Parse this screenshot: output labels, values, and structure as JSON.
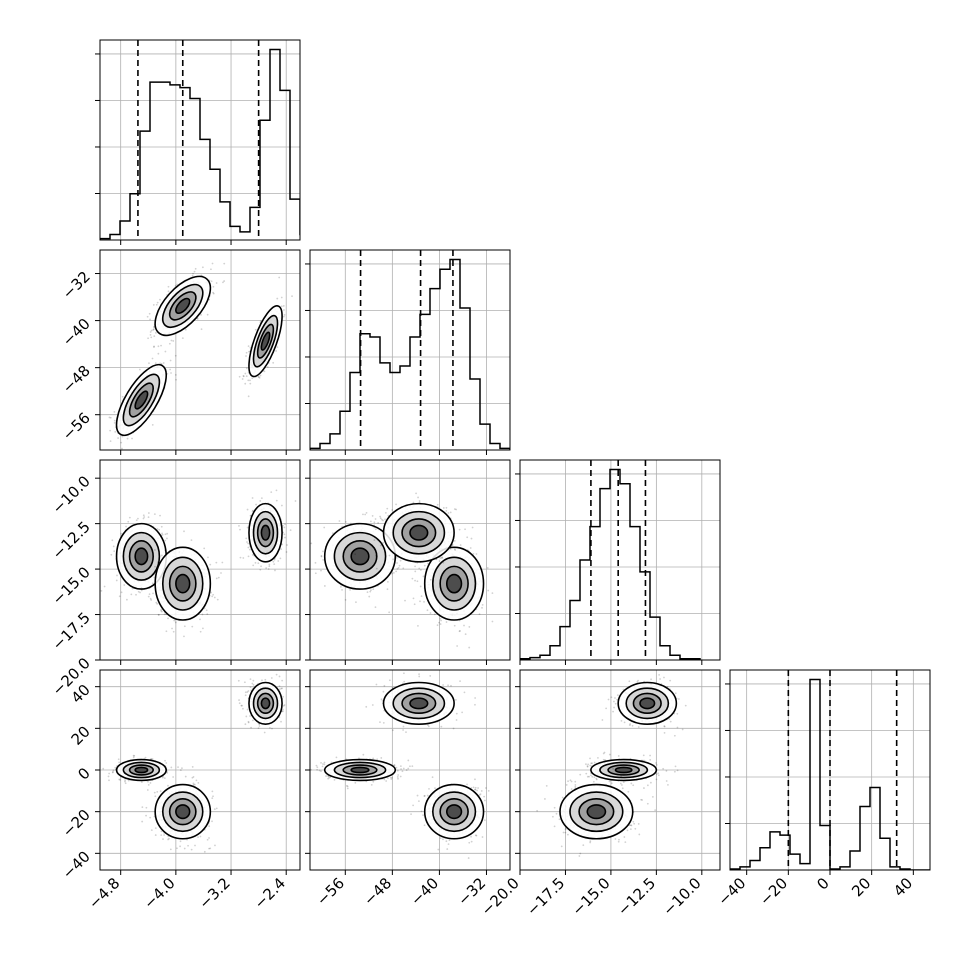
{
  "chart_data": {
    "type": "corner",
    "grid": true,
    "parameters": [
      {
        "range": [
          -5.1,
          -2.2
        ],
        "ticks": [
          -4.8,
          -4.0,
          -3.2,
          -2.4
        ],
        "tick_labels": [
          "−4.8",
          "−4.0",
          "−3.2",
          "−2.4"
        ]
      },
      {
        "range": [
          -62,
          -28
        ],
        "ticks": [
          -56,
          -48,
          -40,
          -32
        ],
        "tick_labels": [
          "−56",
          "−48",
          "−40",
          "−32"
        ]
      },
      {
        "range": [
          -20.0,
          -9.0
        ],
        "ticks": [
          -20.0,
          -17.5,
          -15.0,
          -12.5,
          -10.0
        ],
        "tick_labels": [
          "−20.0",
          "−17.5",
          "−15.0",
          "−12.5",
          "−10.0"
        ]
      },
      {
        "range": [
          -48,
          48
        ],
        "ticks": [
          -40,
          -20,
          0,
          20,
          40
        ],
        "tick_labels": [
          "−40",
          "−20",
          "0",
          "20",
          "40"
        ]
      }
    ],
    "histograms": [
      {
        "edges_start": -5.1,
        "edges_step": 0.145,
        "counts": [
          0.5,
          2,
          7,
          17,
          40,
          58,
          58,
          57,
          56,
          52,
          37,
          26,
          14,
          5,
          3,
          12,
          44,
          70,
          55,
          15,
          2
        ],
        "quantiles": [
          -4.55,
          -3.9,
          -2.8
        ]
      },
      {
        "edges_start": -62,
        "edges_step": 1.7,
        "counts": [
          0.5,
          2,
          5,
          12,
          24,
          36,
          35,
          27,
          24,
          26,
          35,
          42,
          50,
          56,
          59,
          44,
          22,
          8,
          2,
          0.5
        ],
        "quantiles": [
          -53.4,
          -43.2,
          -37.7
        ]
      },
      {
        "edges_start": -20.0,
        "edges_step": 0.55,
        "counts": [
          0.5,
          1,
          2,
          6,
          14,
          25,
          42,
          56,
          72,
          80,
          74,
          56,
          37,
          18,
          6,
          2,
          0.5,
          0.5
        ],
        "quantiles": [
          -16.1,
          -14.6,
          -13.1
        ]
      },
      {
        "edges_start": -48,
        "edges_step": 4.8,
        "counts": [
          0.3,
          1,
          3,
          7,
          12,
          11,
          5,
          2,
          60,
          14,
          0.3,
          1,
          6,
          20,
          26,
          10,
          1,
          0.3,
          0,
          0
        ],
        "quantiles": [
          -20,
          0,
          32
        ]
      }
    ],
    "clusters": [
      {
        "means": [
          -4.5,
          -53.5,
          -14.3,
          0
        ],
        "sd": [
          0.18,
          3.0,
          0.9,
          2.5
        ],
        "corr": [
          [
            1,
            0.7,
            0,
            0
          ],
          [
            0.7,
            1,
            0,
            0
          ],
          [
            0,
            0,
            1,
            0
          ],
          [
            0,
            0,
            0,
            1
          ]
        ]
      },
      {
        "means": [
          -3.9,
          -37.5,
          -15.8,
          -20
        ],
        "sd": [
          0.2,
          2.5,
          1.0,
          6.5
        ],
        "corr": [
          [
            1,
            0.6,
            0,
            0
          ],
          [
            0.6,
            1,
            0,
            0
          ],
          [
            0,
            0,
            1,
            0
          ],
          [
            0,
            0,
            0,
            1
          ]
        ]
      },
      {
        "means": [
          -2.7,
          -43.5,
          -13.0,
          32
        ],
        "sd": [
          0.12,
          3.0,
          0.8,
          5.0
        ],
        "corr": [
          [
            1,
            0.7,
            0,
            0
          ],
          [
            0.7,
            1,
            0,
            0
          ],
          [
            0,
            0,
            1,
            0
          ],
          [
            0,
            0,
            0,
            1
          ]
        ]
      }
    ]
  }
}
